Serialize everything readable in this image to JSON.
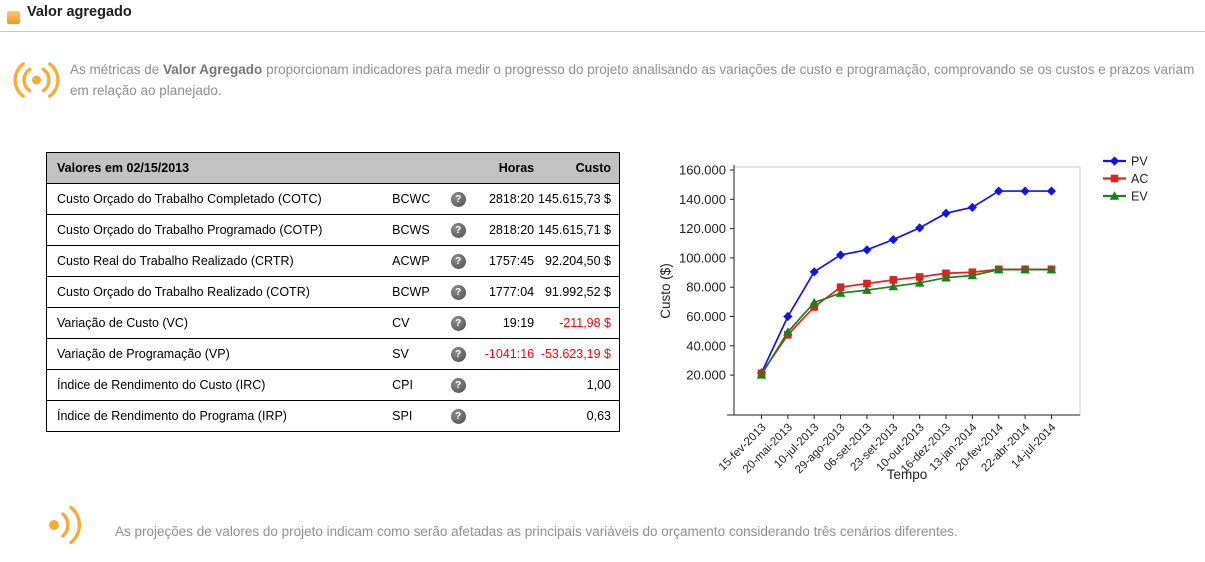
{
  "page": {
    "title": "Valor agregado"
  },
  "colors": {
    "accent_orange": "#f6a42c",
    "negative_red": "#ff0000",
    "table_header_bg": "#c2c2c2"
  },
  "intro": {
    "text_prefix": "As métricas de ",
    "text_bold": "Valor Agregado",
    "text_suffix": " proporcionam indicadores para medir o progresso do projeto analisando as variações de custo e programação, comprovando se os custos e prazos variam em relação ao planejado."
  },
  "table": {
    "header": {
      "title": "Valores em 02/15/2013",
      "horas": "Horas",
      "custo": "Custo"
    },
    "help_icon": "?",
    "rows": [
      {
        "name": "Custo Orçado do Trabalho Completado (COTC)",
        "code": "BCWC",
        "horas": "2818:20",
        "custo": "145.615,73 $"
      },
      {
        "name": "Custo Orçado do Trabalho Programado (COTP)",
        "code": "BCWS",
        "horas": "2818:20",
        "custo": "145.615,71 $"
      },
      {
        "name": "Custo Real do Trabalho Realizado (CRTR)",
        "code": "ACWP",
        "horas": "1757:45",
        "custo": "92.204,50 $"
      },
      {
        "name": "Custo Orçado do Trabalho Realizado (COTR)",
        "code": "BCWP",
        "horas": "1777:04",
        "custo": "91.992,52 $"
      },
      {
        "name": "Variação de Custo (VC)",
        "code": "CV",
        "horas": "19:19",
        "custo": "-211,98 $"
      },
      {
        "name": "Variação de Programação (VP)",
        "code": "SV",
        "horas": "-1041:16",
        "custo": "-53.623,19 $"
      },
      {
        "name": "Índice de Rendimento do Custo (IRC)",
        "code": "CPI",
        "horas": "",
        "custo": "1,00"
      },
      {
        "name": "Índice de Rendimento do Programa (IRP)",
        "code": "SPI",
        "horas": "",
        "custo": "0,63"
      }
    ]
  },
  "chart_data": {
    "type": "line",
    "title": "",
    "xlabel": "Tempo",
    "ylabel": "Custo ($)",
    "ylim": [
      0,
      160000
    ],
    "yticks": [
      160000,
      140000,
      120000,
      100000,
      80000,
      60000,
      40000,
      20000
    ],
    "ytick_labels": [
      "160.000",
      "140.000",
      "120.000",
      "100.000",
      "80.000",
      "60.000",
      "40.000",
      "20.000"
    ],
    "categories": [
      "15-fev-2013",
      "20-mai-2013",
      "10-jul-2013",
      "29-ago-2013",
      "06-set-2013",
      "23-set-2013",
      "10-out-2013",
      "16-dez-2013",
      "13-jan-2014",
      "20-fev-2014",
      "22-abr-2014",
      "14-jul-2014"
    ],
    "grid": false,
    "legend_position": "right",
    "series": [
      {
        "name": "PV",
        "color": "#1212ee",
        "marker": "diamond",
        "values": [
          21500,
          60000,
          90500,
          102000,
          105500,
          112500,
          120500,
          130500,
          134500,
          145616,
          145616,
          145616
        ]
      },
      {
        "name": "AC",
        "color": "#e51f1f",
        "marker": "square",
        "values": [
          21200,
          47500,
          66500,
          80000,
          82500,
          85000,
          87000,
          89500,
          90200,
          92204,
          92204,
          92204
        ]
      },
      {
        "name": "EV",
        "color": "#1a821a",
        "marker": "triangle",
        "values": [
          20200,
          49500,
          69500,
          76000,
          78000,
          80500,
          83000,
          86500,
          88000,
          91993,
          91993,
          91993
        ]
      }
    ]
  },
  "footer": {
    "text": "As projeções de valores do projeto indicam como serão afetadas as principais variáveis do orçamento considerando três cenários diferentes."
  }
}
